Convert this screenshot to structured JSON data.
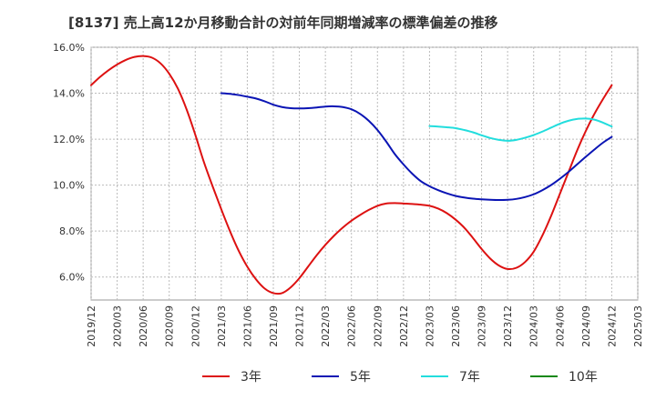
{
  "chart_data": {
    "type": "line",
    "title": "[8137]  売上高12か月移動合計の対前年同期増減率の標準偏差の推移",
    "xlabel": "",
    "ylabel": "",
    "ylim": [
      5.0,
      16.0
    ],
    "y_ticks": [
      6.0,
      8.0,
      10.0,
      12.0,
      14.0,
      16.0
    ],
    "y_tick_labels": [
      "6.0%",
      "8.0%",
      "10.0%",
      "12.0%",
      "14.0%",
      "16.0%"
    ],
    "x_tick_labels": [
      "2019/12",
      "2020/03",
      "2020/06",
      "2020/09",
      "2020/12",
      "2021/03",
      "2021/06",
      "2021/09",
      "2021/12",
      "2022/03",
      "2022/06",
      "2022/09",
      "2022/12",
      "2023/03",
      "2023/06",
      "2023/09",
      "2023/12",
      "2024/03",
      "2024/06",
      "2024/09",
      "2024/12",
      "2025/03"
    ],
    "grid": true,
    "legend_position": "bottom",
    "series": [
      {
        "name": "3年",
        "color": "#dd1111",
        "points": [
          [
            "2019/12",
            14.35
          ],
          [
            "2020/01",
            14.7
          ],
          [
            "2020/02",
            15.0
          ],
          [
            "2020/03",
            15.25
          ],
          [
            "2020/04",
            15.45
          ],
          [
            "2020/05",
            15.58
          ],
          [
            "2020/06",
            15.62
          ],
          [
            "2020/07",
            15.55
          ],
          [
            "2020/08",
            15.3
          ],
          [
            "2020/09",
            14.85
          ],
          [
            "2020/10",
            14.2
          ],
          [
            "2020/11",
            13.3
          ],
          [
            "2020/12",
            12.2
          ],
          [
            "2021/01",
            11.0
          ],
          [
            "2021/02",
            9.95
          ],
          [
            "2021/03",
            8.95
          ],
          [
            "2021/04",
            8.0
          ],
          [
            "2021/05",
            7.15
          ],
          [
            "2021/06",
            6.45
          ],
          [
            "2021/07",
            5.9
          ],
          [
            "2021/08",
            5.5
          ],
          [
            "2021/09",
            5.3
          ],
          [
            "2021/10",
            5.3
          ],
          [
            "2021/11",
            5.55
          ],
          [
            "2021/12",
            5.95
          ],
          [
            "2022/01",
            6.45
          ],
          [
            "2022/02",
            6.95
          ],
          [
            "2022/03",
            7.4
          ],
          [
            "2022/04",
            7.8
          ],
          [
            "2022/05",
            8.15
          ],
          [
            "2022/06",
            8.45
          ],
          [
            "2022/07",
            8.7
          ],
          [
            "2022/08",
            8.92
          ],
          [
            "2022/09",
            9.1
          ],
          [
            "2022/10",
            9.2
          ],
          [
            "2022/11",
            9.22
          ],
          [
            "2022/12",
            9.2
          ],
          [
            "2023/01",
            9.18
          ],
          [
            "2023/02",
            9.15
          ],
          [
            "2023/03",
            9.1
          ],
          [
            "2023/04",
            8.98
          ],
          [
            "2023/05",
            8.78
          ],
          [
            "2023/06",
            8.5
          ],
          [
            "2023/07",
            8.15
          ],
          [
            "2023/08",
            7.7
          ],
          [
            "2023/09",
            7.22
          ],
          [
            "2023/10",
            6.8
          ],
          [
            "2023/11",
            6.5
          ],
          [
            "2023/12",
            6.35
          ],
          [
            "2024/01",
            6.4
          ],
          [
            "2024/02",
            6.65
          ],
          [
            "2024/03",
            7.1
          ],
          [
            "2024/04",
            7.8
          ],
          [
            "2024/05",
            8.65
          ],
          [
            "2024/06",
            9.6
          ],
          [
            "2024/07",
            10.55
          ],
          [
            "2024/08",
            11.5
          ],
          [
            "2024/09",
            12.35
          ],
          [
            "2024/10",
            13.1
          ],
          [
            "2024/11",
            13.75
          ],
          [
            "2024/12",
            14.35
          ]
        ]
      },
      {
        "name": "5年",
        "color": "#0a14b4",
        "points": [
          [
            "2021/03",
            14.0
          ],
          [
            "2021/04",
            13.97
          ],
          [
            "2021/05",
            13.92
          ],
          [
            "2021/06",
            13.85
          ],
          [
            "2021/07",
            13.77
          ],
          [
            "2021/08",
            13.65
          ],
          [
            "2021/09",
            13.5
          ],
          [
            "2021/10",
            13.4
          ],
          [
            "2021/11",
            13.35
          ],
          [
            "2021/12",
            13.34
          ],
          [
            "2022/01",
            13.35
          ],
          [
            "2022/02",
            13.38
          ],
          [
            "2022/03",
            13.42
          ],
          [
            "2022/04",
            13.43
          ],
          [
            "2022/05",
            13.4
          ],
          [
            "2022/06",
            13.3
          ],
          [
            "2022/07",
            13.1
          ],
          [
            "2022/08",
            12.8
          ],
          [
            "2022/09",
            12.4
          ],
          [
            "2022/10",
            11.9
          ],
          [
            "2022/11",
            11.35
          ],
          [
            "2022/12",
            10.9
          ],
          [
            "2023/01",
            10.5
          ],
          [
            "2023/02",
            10.17
          ],
          [
            "2023/03",
            9.95
          ],
          [
            "2023/04",
            9.78
          ],
          [
            "2023/05",
            9.64
          ],
          [
            "2023/06",
            9.53
          ],
          [
            "2023/07",
            9.46
          ],
          [
            "2023/08",
            9.41
          ],
          [
            "2023/09",
            9.38
          ],
          [
            "2023/10",
            9.36
          ],
          [
            "2023/11",
            9.35
          ],
          [
            "2023/12",
            9.36
          ],
          [
            "2024/01",
            9.4
          ],
          [
            "2024/02",
            9.48
          ],
          [
            "2024/03",
            9.6
          ],
          [
            "2024/04",
            9.78
          ],
          [
            "2024/05",
            10.0
          ],
          [
            "2024/06",
            10.27
          ],
          [
            "2024/07",
            10.57
          ],
          [
            "2024/08",
            10.9
          ],
          [
            "2024/09",
            11.23
          ],
          [
            "2024/10",
            11.55
          ],
          [
            "2024/11",
            11.85
          ],
          [
            "2024/12",
            12.1
          ]
        ]
      },
      {
        "name": "7年",
        "color": "#22dddd",
        "points": [
          [
            "2023/03",
            12.57
          ],
          [
            "2023/04",
            12.55
          ],
          [
            "2023/05",
            12.52
          ],
          [
            "2023/06",
            12.48
          ],
          [
            "2023/07",
            12.4
          ],
          [
            "2023/08",
            12.3
          ],
          [
            "2023/09",
            12.17
          ],
          [
            "2023/10",
            12.05
          ],
          [
            "2023/11",
            11.97
          ],
          [
            "2023/12",
            11.93
          ],
          [
            "2024/01",
            11.97
          ],
          [
            "2024/02",
            12.06
          ],
          [
            "2024/03",
            12.18
          ],
          [
            "2024/04",
            12.33
          ],
          [
            "2024/05",
            12.5
          ],
          [
            "2024/06",
            12.67
          ],
          [
            "2024/07",
            12.8
          ],
          [
            "2024/08",
            12.88
          ],
          [
            "2024/09",
            12.9
          ],
          [
            "2024/10",
            12.85
          ],
          [
            "2024/11",
            12.72
          ],
          [
            "2024/12",
            12.55
          ]
        ]
      },
      {
        "name": "10年",
        "color": "#118811",
        "points": []
      }
    ]
  }
}
